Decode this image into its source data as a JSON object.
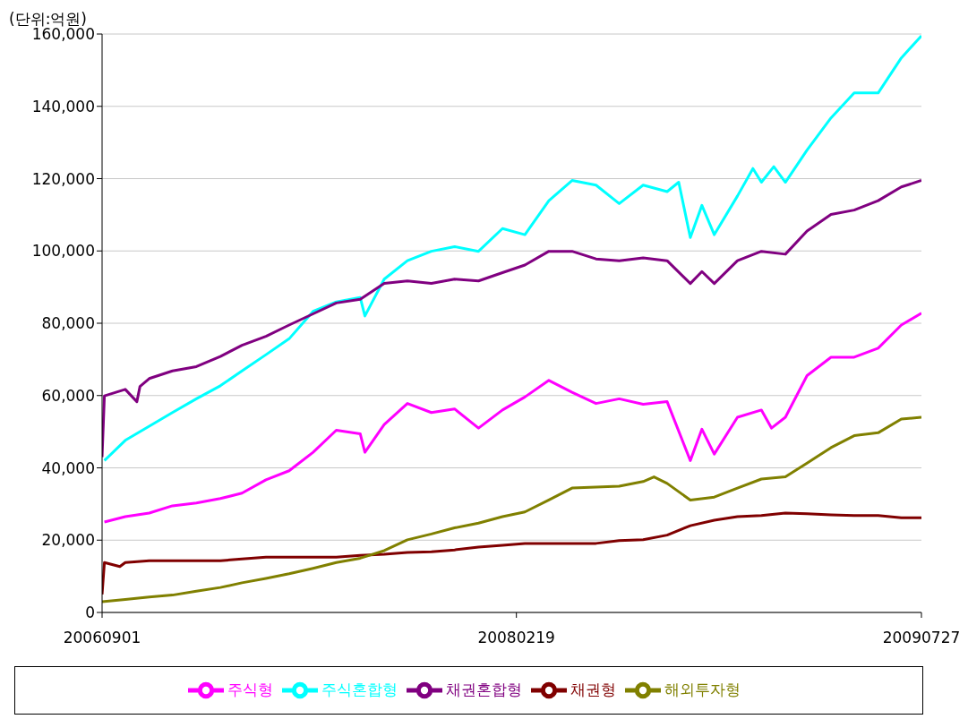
{
  "chart_data": {
    "type": "line",
    "ylabel": "(단위:억원)",
    "xlim": [
      "2006-09-01",
      "2009-07-27"
    ],
    "xticks": [
      {
        "value": "2006-09-01",
        "label": "20060901"
      },
      {
        "value": "2008-02-19",
        "label": "20080219"
      },
      {
        "value": "2009-07-27",
        "label": "20090727"
      }
    ],
    "ylim": [
      0,
      160000
    ],
    "yticks": [
      0,
      {
        "value": 20000,
        "label": "20,000"
      },
      {
        "value": 40000,
        "label": "40,000"
      },
      {
        "value": 60000,
        "label": "60,000"
      },
      {
        "value": 80000,
        "label": "80,000"
      },
      {
        "value": 100000,
        "label": "100,000"
      },
      {
        "value": 120000,
        "label": "120,000"
      },
      {
        "value": 140000,
        "label": "140,000"
      },
      {
        "value": 160000,
        "label": "160,000"
      }
    ],
    "grid": "y",
    "legend": "bottom",
    "marker": "none",
    "line_style": "solid",
    "series": [
      {
        "name": "주식형",
        "color": "#ff00ff",
        "x": [
          "2006-09-04",
          "2006-10-01",
          "2006-11-01",
          "2006-12-01",
          "2007-01-01",
          "2007-02-01",
          "2007-03-01",
          "2007-04-01",
          "2007-05-01",
          "2007-06-01",
          "2007-07-01",
          "2007-08-01",
          "2007-08-07",
          "2007-09-01",
          "2007-10-01",
          "2007-11-01",
          "2007-12-01",
          "2008-01-01",
          "2008-02-01",
          "2008-03-01",
          "2008-04-01",
          "2008-05-01",
          "2008-06-01",
          "2008-07-01",
          "2008-08-01",
          "2008-09-01",
          "2008-10-01",
          "2008-10-16",
          "2008-11-01",
          "2008-12-01",
          "2009-01-01",
          "2009-01-14",
          "2009-02-01",
          "2009-03-01",
          "2009-04-01",
          "2009-05-01",
          "2009-06-01",
          "2009-07-01",
          "2009-07-27"
        ],
        "values": [
          25000,
          26500,
          27500,
          29500,
          30300,
          31500,
          33000,
          36700,
          39200,
          44300,
          50400,
          49400,
          44300,
          52000,
          57800,
          55300,
          56300,
          51000,
          56000,
          59600,
          64200,
          60900,
          57800,
          59100,
          57600,
          58300,
          42000,
          50700,
          43800,
          54000,
          56000,
          51000,
          54000,
          65500,
          70600,
          70600,
          73100,
          79500,
          82800
        ]
      },
      {
        "name": "주식혼합형",
        "color": "#00ffff",
        "x": [
          "2006-09-04",
          "2006-10-01",
          "2006-11-01",
          "2006-12-01",
          "2007-01-01",
          "2007-02-01",
          "2007-03-01",
          "2007-04-01",
          "2007-05-01",
          "2007-06-01",
          "2007-07-01",
          "2007-08-01",
          "2007-08-07",
          "2007-09-01",
          "2007-10-01",
          "2007-11-01",
          "2007-12-01",
          "2008-01-01",
          "2008-02-01",
          "2008-03-01",
          "2008-04-01",
          "2008-05-01",
          "2008-06-01",
          "2008-07-01",
          "2008-08-01",
          "2008-09-01",
          "2008-09-16",
          "2008-10-01",
          "2008-10-16",
          "2008-11-01",
          "2008-12-01",
          "2008-12-21",
          "2009-01-01",
          "2009-01-17",
          "2009-02-01",
          "2009-03-01",
          "2009-04-01",
          "2009-05-01",
          "2009-06-01",
          "2009-07-01",
          "2009-07-27"
        ],
        "values": [
          42000,
          47600,
          51500,
          55300,
          59100,
          62700,
          66800,
          71300,
          75700,
          83300,
          85900,
          87100,
          82000,
          92200,
          97300,
          99900,
          101200,
          99900,
          106200,
          104500,
          113900,
          119500,
          118200,
          113100,
          118200,
          116400,
          119000,
          103700,
          112600,
          104500,
          115200,
          122800,
          119000,
          123300,
          119000,
          127900,
          136800,
          143700,
          143700,
          153400,
          159500
        ]
      },
      {
        "name": "채권혼합형",
        "color": "#800080",
        "x": [
          "2006-09-01",
          "2006-09-04",
          "2006-10-01",
          "2006-10-16",
          "2006-10-20",
          "2006-11-01",
          "2006-12-01",
          "2007-01-01",
          "2007-02-01",
          "2007-03-01",
          "2007-04-01",
          "2007-05-01",
          "2007-06-01",
          "2007-07-01",
          "2007-08-01",
          "2007-09-01",
          "2007-10-01",
          "2007-11-01",
          "2007-12-01",
          "2008-01-01",
          "2008-02-01",
          "2008-03-01",
          "2008-04-01",
          "2008-05-01",
          "2008-06-01",
          "2008-07-01",
          "2008-08-01",
          "2008-09-01",
          "2008-10-01",
          "2008-10-16",
          "2008-11-01",
          "2008-12-01",
          "2009-01-01",
          "2009-02-01",
          "2009-03-01",
          "2009-04-01",
          "2009-05-01",
          "2009-06-01",
          "2009-07-01",
          "2009-07-27"
        ],
        "values": [
          43000,
          59900,
          61700,
          58300,
          62500,
          64700,
          66800,
          68000,
          70800,
          73900,
          76400,
          79500,
          82600,
          85600,
          86600,
          91000,
          91700,
          91000,
          92200,
          91700,
          94000,
          96100,
          99900,
          99900,
          97800,
          97300,
          98100,
          97300,
          91000,
          94300,
          91000,
          97300,
          99900,
          99100,
          105500,
          110100,
          111300,
          113900,
          117700,
          119500
        ]
      },
      {
        "name": "채권형",
        "color": "#800000",
        "x": [
          "2006-09-01",
          "2006-09-04",
          "2006-09-24",
          "2006-10-01",
          "2006-11-01",
          "2006-12-01",
          "2007-01-01",
          "2007-02-01",
          "2007-03-01",
          "2007-04-01",
          "2007-05-01",
          "2007-06-01",
          "2007-07-01",
          "2007-08-01",
          "2007-09-01",
          "2007-10-01",
          "2007-11-01",
          "2007-12-01",
          "2008-01-01",
          "2008-02-01",
          "2008-03-01",
          "2008-04-01",
          "2008-05-01",
          "2008-06-01",
          "2008-07-01",
          "2008-08-01",
          "2008-09-01",
          "2008-10-01",
          "2008-11-01",
          "2008-12-01",
          "2009-01-01",
          "2009-02-01",
          "2009-03-01",
          "2009-04-01",
          "2009-05-01",
          "2009-06-01",
          "2009-07-01",
          "2009-07-27"
        ],
        "values": [
          5000,
          13800,
          12700,
          13800,
          14300,
          14300,
          14300,
          14300,
          14800,
          15300,
          15300,
          15300,
          15300,
          15800,
          16100,
          16600,
          16800,
          17300,
          18100,
          18600,
          19100,
          19100,
          19100,
          19100,
          19900,
          20100,
          21400,
          24000,
          25500,
          26500,
          26800,
          27500,
          27300,
          27000,
          26800,
          26800,
          26200,
          26200
        ]
      },
      {
        "name": "해외투자형",
        "color": "#808000",
        "x": [
          "2006-09-01",
          "2006-10-01",
          "2006-11-01",
          "2006-12-01",
          "2007-01-01",
          "2007-02-01",
          "2007-03-01",
          "2007-04-01",
          "2007-05-01",
          "2007-06-01",
          "2007-07-01",
          "2007-08-01",
          "2007-09-01",
          "2007-10-01",
          "2007-11-01",
          "2007-12-01",
          "2008-01-01",
          "2008-02-01",
          "2008-03-01",
          "2008-04-01",
          "2008-05-01",
          "2008-06-01",
          "2008-07-01",
          "2008-08-01",
          "2008-08-15",
          "2008-09-01",
          "2008-10-01",
          "2008-11-01",
          "2008-12-01",
          "2009-01-01",
          "2009-02-01",
          "2009-03-01",
          "2009-04-01",
          "2009-05-01",
          "2009-06-01",
          "2009-07-01",
          "2009-07-27"
        ],
        "values": [
          3000,
          3600,
          4300,
          4800,
          5900,
          6900,
          8200,
          9400,
          10700,
          12200,
          13800,
          15000,
          17100,
          20100,
          21700,
          23400,
          24700,
          26500,
          27800,
          31100,
          34400,
          34700,
          34900,
          36200,
          37500,
          35700,
          31100,
          31900,
          34400,
          36900,
          37500,
          41300,
          45600,
          48900,
          49700,
          53500,
          54000
        ]
      }
    ]
  }
}
